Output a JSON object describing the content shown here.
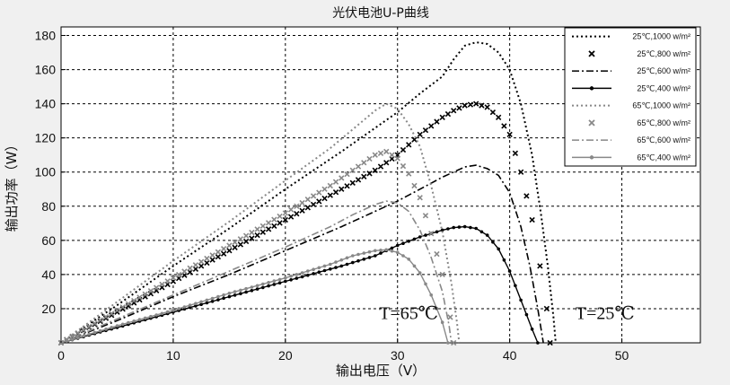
{
  "chart_data": {
    "type": "line",
    "title": "光伏电池U-P曲线",
    "xlabel": "输出电压（V）",
    "ylabel": "输出功率（W）",
    "xlim": [
      0,
      57
    ],
    "ylim": [
      0,
      185
    ],
    "xticks": [
      "0",
      "10",
      "20",
      "30",
      "40",
      "50"
    ],
    "yticks": [
      "20",
      "40",
      "60",
      "80",
      "100",
      "120",
      "140",
      "160",
      "180"
    ],
    "grid": true,
    "legend_position": "top-right",
    "series": [
      {
        "name": "25℃,1000 w/m²",
        "style": "dotted",
        "color": "#000000",
        "points": [
          [
            0,
            0
          ],
          [
            5,
            22
          ],
          [
            10,
            45
          ],
          [
            15,
            67
          ],
          [
            20,
            90
          ],
          [
            25,
            112
          ],
          [
            30,
            135
          ],
          [
            32,
            146
          ],
          [
            34,
            156
          ],
          [
            35,
            166
          ],
          [
            36,
            174
          ],
          [
            37,
            176
          ],
          [
            38,
            175
          ],
          [
            39,
            170
          ],
          [
            40,
            160
          ],
          [
            41,
            140
          ],
          [
            42,
            110
          ],
          [
            42.8,
            75
          ],
          [
            43.4,
            45
          ],
          [
            43.9,
            15
          ],
          [
            44.1,
            0
          ]
        ]
      },
      {
        "name": "25℃,800 w/m²",
        "style": "x-markers",
        "color": "#000000",
        "points": [
          [
            0,
            0
          ],
          [
            5,
            18
          ],
          [
            10,
            36
          ],
          [
            15,
            54
          ],
          [
            20,
            72
          ],
          [
            25,
            90
          ],
          [
            28,
            101
          ],
          [
            30,
            110
          ],
          [
            32,
            122
          ],
          [
            34,
            132
          ],
          [
            35,
            136
          ],
          [
            36,
            139
          ],
          [
            37,
            140
          ],
          [
            38,
            138
          ],
          [
            39,
            132
          ],
          [
            40,
            122
          ],
          [
            41,
            100
          ],
          [
            42,
            72
          ],
          [
            42.7,
            45
          ],
          [
            43.3,
            20
          ],
          [
            43.6,
            0
          ]
        ]
      },
      {
        "name": "25℃,600 w/m²",
        "style": "dash-dot",
        "color": "#000000",
        "points": [
          [
            0,
            0
          ],
          [
            5,
            13
          ],
          [
            10,
            27
          ],
          [
            15,
            40
          ],
          [
            20,
            54
          ],
          [
            25,
            68
          ],
          [
            28,
            77
          ],
          [
            30,
            83
          ],
          [
            32,
            90
          ],
          [
            34,
            97
          ],
          [
            36,
            103
          ],
          [
            37,
            104
          ],
          [
            38,
            102
          ],
          [
            39,
            98
          ],
          [
            40,
            88
          ],
          [
            41,
            68
          ],
          [
            41.8,
            45
          ],
          [
            42.5,
            20
          ],
          [
            43,
            0
          ]
        ]
      },
      {
        "name": "25℃,400 w/m²",
        "style": "solid-dots",
        "color": "#000000",
        "points": [
          [
            0,
            0
          ],
          [
            5,
            9
          ],
          [
            10,
            18
          ],
          [
            15,
            27
          ],
          [
            20,
            36
          ],
          [
            25,
            45
          ],
          [
            28,
            51
          ],
          [
            30,
            57
          ],
          [
            32,
            62
          ],
          [
            34,
            66
          ],
          [
            35,
            67.5
          ],
          [
            36,
            68
          ],
          [
            37,
            67
          ],
          [
            38,
            63
          ],
          [
            39,
            55
          ],
          [
            40,
            42
          ],
          [
            41,
            25
          ],
          [
            42,
            8
          ],
          [
            42.5,
            0
          ]
        ]
      },
      {
        "name": "65℃,1000 w/m²",
        "style": "dotted",
        "color": "#888888",
        "points": [
          [
            0,
            0
          ],
          [
            5,
            24
          ],
          [
            10,
            48
          ],
          [
            15,
            71
          ],
          [
            20,
            95
          ],
          [
            24,
            114
          ],
          [
            26,
            125
          ],
          [
            28,
            136
          ],
          [
            29,
            140
          ],
          [
            30,
            137
          ],
          [
            31,
            128
          ],
          [
            32,
            115
          ],
          [
            33,
            92
          ],
          [
            34,
            65
          ],
          [
            34.8,
            35
          ],
          [
            35.3,
            12
          ],
          [
            35.5,
            0
          ]
        ]
      },
      {
        "name": "65℃,800 w/m²",
        "style": "x-markers",
        "color": "#888888",
        "points": [
          [
            0,
            0
          ],
          [
            5,
            19
          ],
          [
            10,
            38
          ],
          [
            15,
            57
          ],
          [
            20,
            76
          ],
          [
            24,
            92
          ],
          [
            26,
            101
          ],
          [
            28,
            110
          ],
          [
            29,
            112
          ],
          [
            30,
            108
          ],
          [
            31,
            99
          ],
          [
            32,
            85
          ],
          [
            33,
            64
          ],
          [
            34,
            40
          ],
          [
            34.7,
            15
          ],
          [
            35,
            0
          ]
        ]
      },
      {
        "name": "65℃,600 w/m²",
        "style": "dash-dot",
        "color": "#888888",
        "points": [
          [
            0,
            0
          ],
          [
            5,
            14
          ],
          [
            10,
            28
          ],
          [
            15,
            42
          ],
          [
            20,
            56
          ],
          [
            24,
            68
          ],
          [
            26,
            75
          ],
          [
            28,
            81
          ],
          [
            29,
            83
          ],
          [
            30,
            82
          ],
          [
            31,
            77
          ],
          [
            32,
            66
          ],
          [
            33,
            50
          ],
          [
            34,
            30
          ],
          [
            34.6,
            10
          ],
          [
            34.8,
            0
          ]
        ]
      },
      {
        "name": "65℃,400 w/m²",
        "style": "solid-dots",
        "color": "#888888",
        "points": [
          [
            0,
            0
          ],
          [
            5,
            10
          ],
          [
            10,
            19
          ],
          [
            15,
            29
          ],
          [
            20,
            38
          ],
          [
            24,
            46
          ],
          [
            26,
            51
          ],
          [
            28,
            54
          ],
          [
            29,
            54.5
          ],
          [
            30,
            53
          ],
          [
            31,
            49
          ],
          [
            32,
            41
          ],
          [
            33,
            28
          ],
          [
            34,
            12
          ],
          [
            34.5,
            0
          ]
        ]
      }
    ],
    "annotations": [
      {
        "text": "T=65℃",
        "x": 31,
        "y": 14
      },
      {
        "text": "T=25℃",
        "x": 48.5,
        "y": 14
      }
    ]
  }
}
